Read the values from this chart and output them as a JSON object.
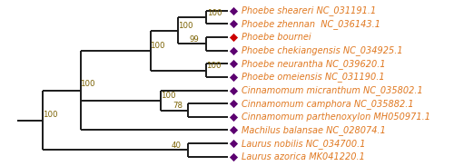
{
  "taxa": [
    {
      "name": "Phoebe sheareri NC_031191.1",
      "y": 11,
      "diamond_color": "#5c0070"
    },
    {
      "name": "Phoebe zhennan  NC_036143.1",
      "y": 10,
      "diamond_color": "#5c0070"
    },
    {
      "name": "Phoebe bournei",
      "y": 9,
      "diamond_color": "#cc0000"
    },
    {
      "name": "Phoebe chekiangensis NC_034925.1",
      "y": 8,
      "diamond_color": "#5c0070"
    },
    {
      "name": "Phoebe neurantha NC_039620.1",
      "y": 7,
      "diamond_color": "#5c0070"
    },
    {
      "name": "Phoebe omeiensis NC_031190.1",
      "y": 6,
      "diamond_color": "#5c0070"
    },
    {
      "name": "Cinnamomum micranthum NC_035802.1",
      "y": 5,
      "diamond_color": "#5c0070"
    },
    {
      "name": "Cinnamomum camphora NC_035882.1",
      "y": 4,
      "diamond_color": "#5c0070"
    },
    {
      "name": "Cinnamomum parthenoxylon MH050971.1",
      "y": 3,
      "diamond_color": "#5c0070"
    },
    {
      "name": "Machilus balansae NC_028074.1",
      "y": 2,
      "diamond_color": "#5c0070"
    },
    {
      "name": "Laurus nobilis NC_034700.1",
      "y": 1,
      "diamond_color": "#5c0070"
    },
    {
      "name": "Laurus azorica MK041220.1",
      "y": 0,
      "diamond_color": "#5c0070"
    }
  ],
  "text_color": "#e07820",
  "line_color": "#1a1a1a",
  "bootstrap_color": "#7a6000",
  "background_color": "#ffffff",
  "fontsize": 7.0,
  "bootstrap_fontsize": 6.2
}
